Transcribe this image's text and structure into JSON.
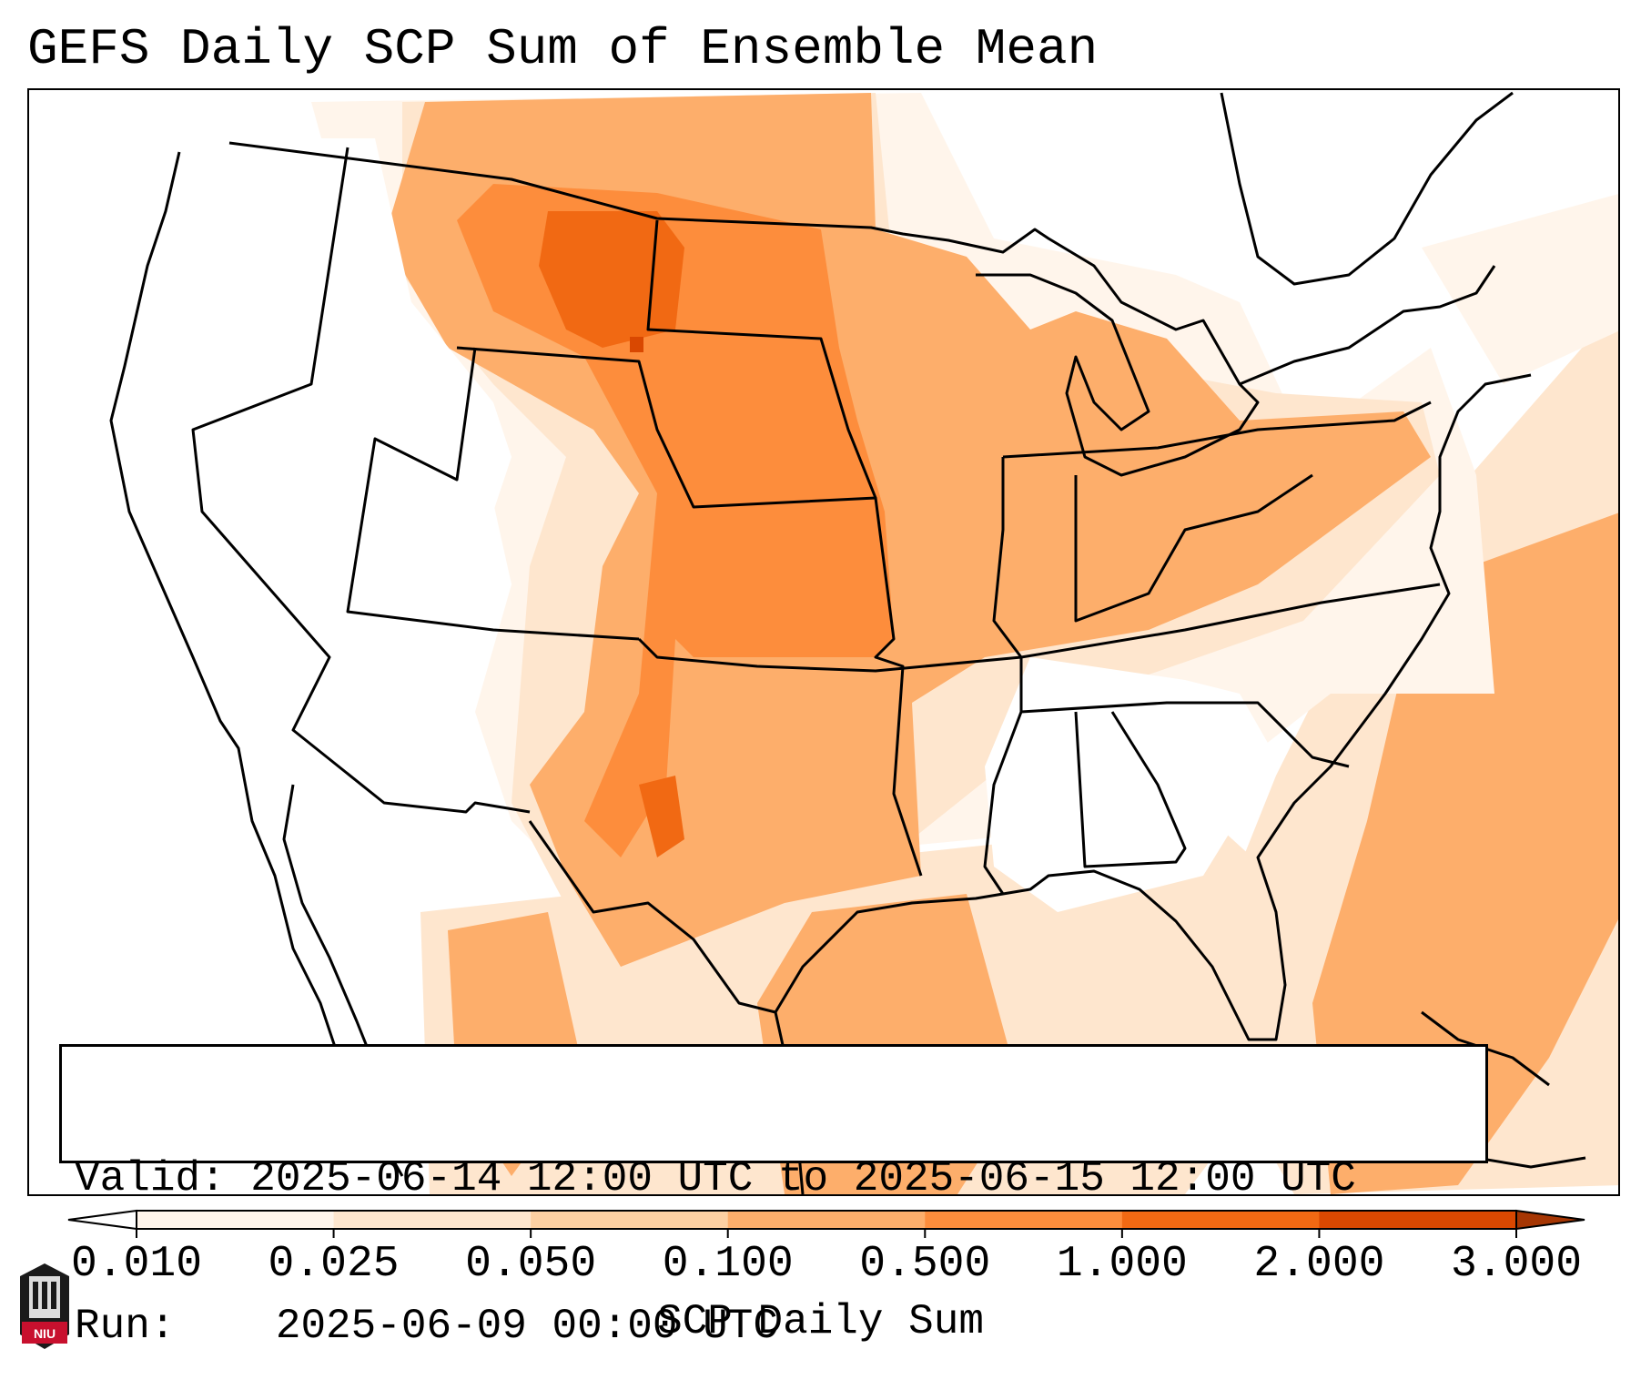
{
  "title": "GEFS Daily SCP Sum of Ensemble Mean",
  "info": {
    "valid_label": "Valid:",
    "valid_value": "2025-06-14 12:00 UTC to 2025-06-15 12:00 UTC",
    "run_label": "Run:",
    "run_value": "2025-06-09 00:00 UTC"
  },
  "colorbar": {
    "label": "SCP Daily Sum",
    "ticks": [
      "0.010",
      "0.025",
      "0.050",
      "0.100",
      "0.500",
      "1.000",
      "2.000",
      "3.000"
    ],
    "colors": [
      "#fff5eb",
      "#fee6ce",
      "#fdd0a2",
      "#fdae6b",
      "#fd8d3c",
      "#f16913",
      "#d94801",
      "#a63603"
    ]
  },
  "logo": {
    "text": "NIU",
    "colors": {
      "red": "#c8102e",
      "dark": "#1a1a1a"
    }
  }
}
